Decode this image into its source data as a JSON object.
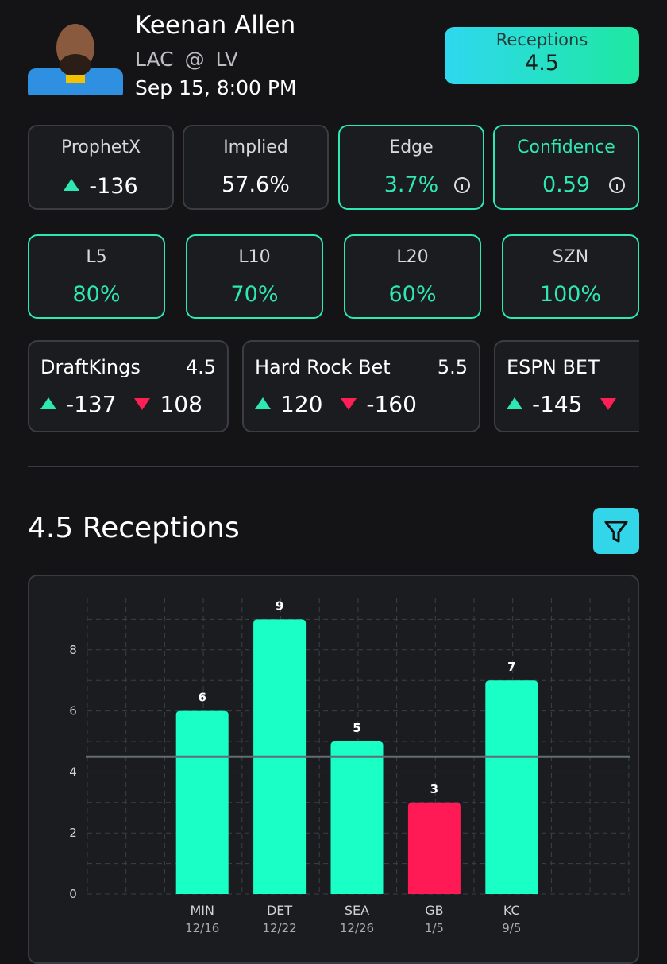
{
  "header": {
    "player": "Keenan Allen",
    "team": "LAC",
    "at": "@",
    "opponent": "LV",
    "datetime": "Sep 15, 8:00 PM",
    "prop_label": "Receptions",
    "prop_line": "4.5"
  },
  "stats": [
    {
      "label": "ProphetX",
      "value": "-136"
    },
    {
      "label": "Implied",
      "value": "57.6%"
    },
    {
      "label": "Edge",
      "value": "3.7%"
    },
    {
      "label": "Confidence",
      "value": "0.59"
    }
  ],
  "hit_rates": [
    {
      "label": "L5",
      "value": "80%"
    },
    {
      "label": "L10",
      "value": "70%"
    },
    {
      "label": "L20",
      "value": "60%"
    },
    {
      "label": "SZN",
      "value": "100%"
    }
  ],
  "books": [
    {
      "name": "DraftKings",
      "line": "4.5",
      "over": "-137",
      "under": "108"
    },
    {
      "name": "Hard Rock Bet",
      "line": "5.5",
      "over": "120",
      "under": "-160"
    },
    {
      "name": "ESPN BET",
      "over": "-145"
    }
  ],
  "chart_data": {
    "type": "bar",
    "title": "4.5 Receptions",
    "categories": [
      "MIN",
      "DET",
      "SEA",
      "GB",
      "KC"
    ],
    "dates": [
      "12/16",
      "12/22",
      "12/26",
      "1/5",
      "9/5"
    ],
    "values": [
      6,
      9,
      5,
      3,
      7
    ],
    "colors": [
      "#1affc5",
      "#1affc5",
      "#1affc5",
      "#ff1a55",
      "#1affc5"
    ],
    "reference_line": 4.5,
    "ylim": [
      0,
      10
    ],
    "yticks": [
      0,
      2,
      4,
      6,
      8
    ],
    "minor_yticks": [
      1,
      3,
      5,
      7,
      9
    ],
    "grid": true
  }
}
